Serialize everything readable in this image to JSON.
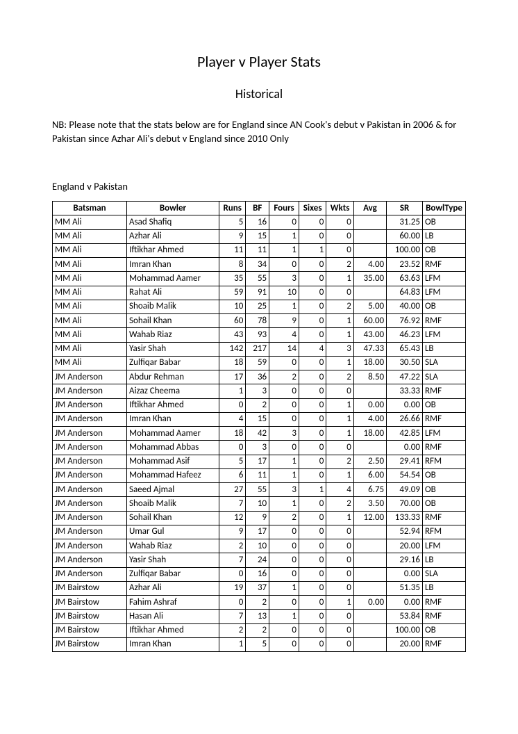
{
  "title": "Player v Player Stats",
  "subtitle": "Historical",
  "note": "NB: Please note that the stats below are for England since AN Cook's debut v Pakistan in 2006 & for Pakistan since Azhar Ali's debut v England since 2010 Only",
  "section": "England v Pakistan",
  "columns": [
    "Batsman",
    "Bowler",
    "Runs",
    "BF",
    "Fours",
    "Sixes",
    "Wkts",
    "Avg",
    "SR",
    "BowlType"
  ],
  "col_classes": [
    "col-batsman",
    "col-bowler",
    "col-runs",
    "col-bf",
    "col-fours",
    "col-sixes",
    "col-wkts",
    "col-avg",
    "col-sr",
    "col-btype"
  ],
  "col_align": [
    "txt",
    "txt",
    "num",
    "num",
    "num",
    "num",
    "num",
    "num",
    "num",
    "txt"
  ],
  "rows": [
    [
      "MM Ali",
      "Asad Shafiq",
      "5",
      "16",
      "0",
      "0",
      "0",
      "",
      "31.25",
      "OB"
    ],
    [
      "MM Ali",
      "Azhar Ali",
      "9",
      "15",
      "1",
      "0",
      "0",
      "",
      "60.00",
      "LB"
    ],
    [
      "MM Ali",
      "Iftikhar Ahmed",
      "11",
      "11",
      "1",
      "1",
      "0",
      "",
      "100.00",
      "OB"
    ],
    [
      "MM Ali",
      "Imran Khan",
      "8",
      "34",
      "0",
      "0",
      "2",
      "4.00",
      "23.52",
      "RMF"
    ],
    [
      "MM Ali",
      "Mohammad Aamer",
      "35",
      "55",
      "3",
      "0",
      "1",
      "35.00",
      "63.63",
      "LFM"
    ],
    [
      "MM Ali",
      "Rahat Ali",
      "59",
      "91",
      "10",
      "0",
      "0",
      "",
      "64.83",
      "LFM"
    ],
    [
      "MM Ali",
      "Shoaib Malik",
      "10",
      "25",
      "1",
      "0",
      "2",
      "5.00",
      "40.00",
      "OB"
    ],
    [
      "MM Ali",
      "Sohail Khan",
      "60",
      "78",
      "9",
      "0",
      "1",
      "60.00",
      "76.92",
      "RMF"
    ],
    [
      "MM Ali",
      "Wahab Riaz",
      "43",
      "93",
      "4",
      "0",
      "1",
      "43.00",
      "46.23",
      "LFM"
    ],
    [
      "MM Ali",
      "Yasir Shah",
      "142",
      "217",
      "14",
      "4",
      "3",
      "47.33",
      "65.43",
      "LB"
    ],
    [
      "MM Ali",
      "Zulfiqar Babar",
      "18",
      "59",
      "0",
      "0",
      "1",
      "18.00",
      "30.50",
      "SLA"
    ],
    [
      "JM Anderson",
      "Abdur Rehman",
      "17",
      "36",
      "2",
      "0",
      "2",
      "8.50",
      "47.22",
      "SLA"
    ],
    [
      "JM Anderson",
      "Aizaz Cheema",
      "1",
      "3",
      "0",
      "0",
      "0",
      "",
      "33.33",
      "RMF"
    ],
    [
      "JM Anderson",
      "Iftikhar Ahmed",
      "0",
      "2",
      "0",
      "0",
      "1",
      "0.00",
      "0.00",
      "OB"
    ],
    [
      "JM Anderson",
      "Imran Khan",
      "4",
      "15",
      "0",
      "0",
      "1",
      "4.00",
      "26.66",
      "RMF"
    ],
    [
      "JM Anderson",
      "Mohammad Aamer",
      "18",
      "42",
      "3",
      "0",
      "1",
      "18.00",
      "42.85",
      "LFM"
    ],
    [
      "JM Anderson",
      "Mohammad Abbas",
      "0",
      "3",
      "0",
      "0",
      "0",
      "",
      "0.00",
      "RMF"
    ],
    [
      "JM Anderson",
      "Mohammad Asif",
      "5",
      "17",
      "1",
      "0",
      "2",
      "2.50",
      "29.41",
      "RFM"
    ],
    [
      "JM Anderson",
      "Mohammad Hafeez",
      "6",
      "11",
      "1",
      "0",
      "1",
      "6.00",
      "54.54",
      "OB"
    ],
    [
      "JM Anderson",
      "Saeed Ajmal",
      "27",
      "55",
      "3",
      "1",
      "4",
      "6.75",
      "49.09",
      "OB"
    ],
    [
      "JM Anderson",
      "Shoaib Malik",
      "7",
      "10",
      "1",
      "0",
      "2",
      "3.50",
      "70.00",
      "OB"
    ],
    [
      "JM Anderson",
      "Sohail Khan",
      "12",
      "9",
      "2",
      "0",
      "1",
      "12.00",
      "133.33",
      "RMF"
    ],
    [
      "JM Anderson",
      "Umar Gul",
      "9",
      "17",
      "0",
      "0",
      "0",
      "",
      "52.94",
      "RFM"
    ],
    [
      "JM Anderson",
      "Wahab Riaz",
      "2",
      "10",
      "0",
      "0",
      "0",
      "",
      "20.00",
      "LFM"
    ],
    [
      "JM Anderson",
      "Yasir Shah",
      "7",
      "24",
      "0",
      "0",
      "0",
      "",
      "29.16",
      "LB"
    ],
    [
      "JM Anderson",
      "Zulfiqar Babar",
      "0",
      "16",
      "0",
      "0",
      "0",
      "",
      "0.00",
      "SLA"
    ],
    [
      "JM Bairstow",
      "Azhar Ali",
      "19",
      "37",
      "1",
      "0",
      "0",
      "",
      "51.35",
      "LB"
    ],
    [
      "JM Bairstow",
      "Fahim Ashraf",
      "0",
      "2",
      "0",
      "0",
      "1",
      "0.00",
      "0.00",
      "RMF"
    ],
    [
      "JM Bairstow",
      "Hasan Ali",
      "7",
      "13",
      "1",
      "0",
      "0",
      "",
      "53.84",
      "RMF"
    ],
    [
      "JM Bairstow",
      "Iftikhar Ahmed",
      "2",
      "2",
      "0",
      "0",
      "0",
      "",
      "100.00",
      "OB"
    ],
    [
      "JM Bairstow",
      "Imran Khan",
      "1",
      "5",
      "0",
      "0",
      "0",
      "",
      "20.00",
      "RMF"
    ]
  ]
}
